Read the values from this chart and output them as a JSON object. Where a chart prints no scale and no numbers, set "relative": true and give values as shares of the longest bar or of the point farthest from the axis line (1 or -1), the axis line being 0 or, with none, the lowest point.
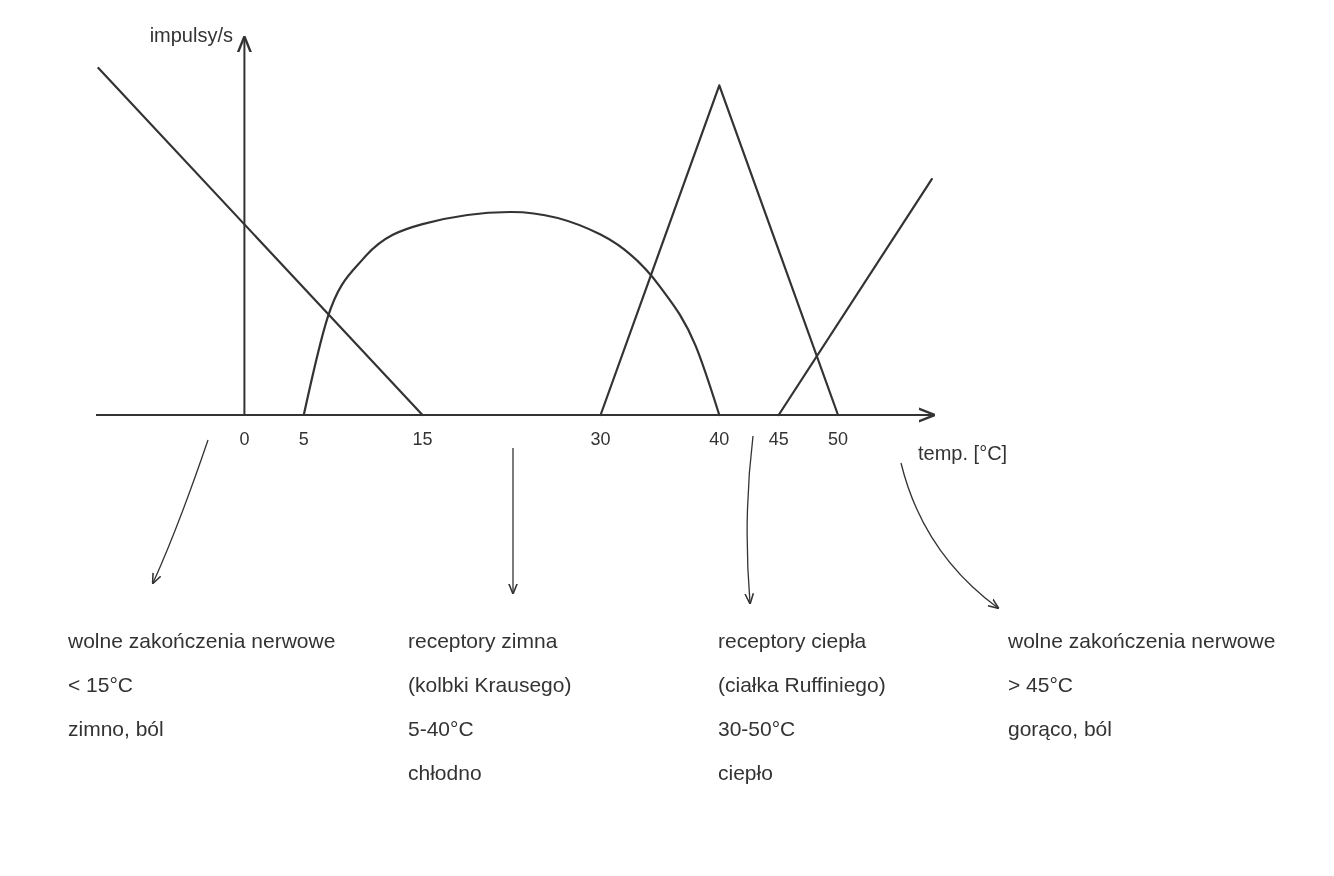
{
  "chart_data": {
    "type": "line",
    "relative": true,
    "xlabel": "temp. [°C]",
    "ylabel": "impulsy/s",
    "xlim": [
      -12.5,
      58
    ],
    "xticks": [
      0,
      5,
      15,
      30,
      40,
      45,
      50
    ],
    "line_style": "solid",
    "series": [
      {
        "color": "#333333",
        "x": [
          -12.3,
          15
        ],
        "values": [
          1,
          0
        ]
      },
      {
        "color": "#333333",
        "x": [
          5,
          7,
          10,
          15,
          22.5,
          30,
          35,
          38,
          40
        ],
        "values": [
          0,
          0.28,
          0.45,
          0.55,
          0.585,
          0.52,
          0.37,
          0.2,
          0
        ]
      },
      {
        "color": "#333333",
        "x": [
          30,
          40,
          50
        ],
        "values": [
          0,
          0.95,
          0
        ]
      },
      {
        "color": "#333333",
        "x": [
          45,
          57.9
        ],
        "values": [
          0,
          0.68
        ]
      }
    ],
    "annotations": [
      "wolne zakończenia nerwowe\n< 15°C\nzimno, ból",
      "receptory zimna\n(kolbki Krausego)\n5-40°C\nchłodno",
      "receptory ciepła\n(ciałka Ruffiniego)\n30-50°C\nciepło",
      "wolne zakończenia nerwowe\n> 45°C\ngorąco, ból"
    ]
  }
}
